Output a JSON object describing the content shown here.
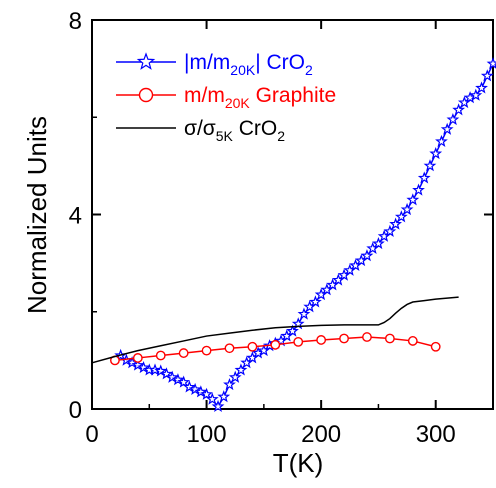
{
  "chart_data": {
    "type": "line",
    "xlabel": "T(K)",
    "ylabel": "Normalized Units",
    "xlim": [
      0,
      350
    ],
    "ylim": [
      0,
      8
    ],
    "xticks": [
      0,
      100,
      200,
      300
    ],
    "yticks": [
      0,
      4,
      8
    ],
    "xtick_labels": [
      "0",
      "100",
      "200",
      "300"
    ],
    "ytick_labels": [
      "0",
      "4",
      "8"
    ],
    "grid": false,
    "legend_position": "top-left",
    "series": [
      {
        "name": "|m/m20K| CrO2",
        "legend": {
          "pre": "|m/m",
          "sub1": "20K",
          "mid": "|  CrO",
          "sub2": "2"
        },
        "color": "#0000ff",
        "marker": "star",
        "x": [
          25,
          30,
          35,
          40,
          45,
          50,
          55,
          60,
          65,
          70,
          75,
          80,
          85,
          90,
          95,
          100,
          105,
          110,
          115,
          120,
          125,
          130,
          135,
          140,
          145,
          150,
          155,
          160,
          165,
          170,
          175,
          180,
          185,
          190,
          195,
          200,
          205,
          210,
          215,
          220,
          225,
          230,
          235,
          240,
          245,
          250,
          255,
          260,
          265,
          270,
          275,
          280,
          285,
          290,
          295,
          300,
          305,
          310,
          315,
          320,
          325,
          330,
          335,
          340,
          345,
          350
        ],
        "y": [
          1.1,
          1.0,
          0.95,
          0.9,
          0.85,
          0.8,
          0.8,
          0.78,
          0.72,
          0.65,
          0.6,
          0.55,
          0.45,
          0.4,
          0.35,
          0.3,
          0.2,
          0.05,
          0.25,
          0.5,
          0.65,
          0.8,
          0.95,
          1.05,
          1.15,
          1.2,
          1.3,
          1.35,
          1.4,
          1.5,
          1.6,
          1.75,
          1.95,
          2.1,
          2.2,
          2.35,
          2.45,
          2.55,
          2.65,
          2.75,
          2.85,
          2.95,
          3.05,
          3.15,
          3.3,
          3.4,
          3.55,
          3.65,
          3.8,
          3.95,
          4.1,
          4.3,
          4.5,
          4.75,
          5.0,
          5.25,
          5.5,
          5.75,
          5.95,
          6.15,
          6.3,
          6.4,
          6.45,
          6.6,
          6.85,
          7.1
        ]
      },
      {
        "name": "m/m20K Graphite",
        "legend": {
          "pre": "m/m",
          "sub1": "20K",
          "mid": " Graphite",
          "sub2": ""
        },
        "color": "#ff0000",
        "marker": "circle",
        "x": [
          20,
          40,
          60,
          80,
          100,
          120,
          140,
          160,
          180,
          200,
          220,
          240,
          260,
          280,
          300
        ],
        "y": [
          1.0,
          1.05,
          1.1,
          1.15,
          1.2,
          1.25,
          1.28,
          1.32,
          1.38,
          1.42,
          1.45,
          1.48,
          1.45,
          1.4,
          1.28
        ]
      },
      {
        "name": "σ/σ5K CrO2",
        "legend": {
          "pre": "σ/σ",
          "sub1": "5K",
          "mid": " CrO",
          "sub2": "2"
        },
        "color": "#000000",
        "marker": "none",
        "x": [
          0,
          20,
          40,
          60,
          80,
          100,
          120,
          140,
          160,
          180,
          200,
          220,
          240,
          250,
          255,
          260,
          265,
          270,
          275,
          280,
          290,
          300,
          310,
          320
        ],
        "y": [
          0.95,
          1.08,
          1.2,
          1.3,
          1.4,
          1.5,
          1.56,
          1.62,
          1.67,
          1.7,
          1.72,
          1.73,
          1.73,
          1.73,
          1.78,
          1.86,
          1.97,
          2.07,
          2.15,
          2.2,
          2.23,
          2.26,
          2.28,
          2.3
        ]
      }
    ]
  }
}
